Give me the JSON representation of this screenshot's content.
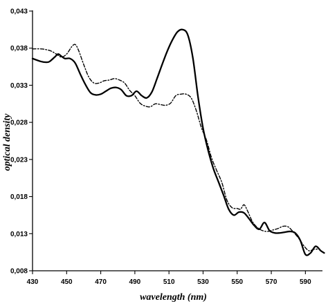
{
  "chart_data": {
    "type": "line",
    "title": "",
    "xlabel": "wavelength (nm)",
    "ylabel": "optical density",
    "xlim": [
      430,
      600
    ],
    "ylim": [
      0.008,
      0.043
    ],
    "x_ticks": [
      430,
      450,
      470,
      490,
      510,
      530,
      550,
      570,
      590
    ],
    "x_tick_labels": [
      "430",
      "450",
      "470",
      "490",
      "510",
      "530",
      "550",
      "570",
      "590"
    ],
    "y_ticks": [
      0.008,
      0.013,
      0.018,
      0.023,
      0.028,
      0.033,
      0.038,
      0.043
    ],
    "y_tick_labels": [
      "0,008",
      "0,013",
      "0,018",
      "0,023",
      "0,028",
      "0,033",
      "0,038",
      "0,043"
    ],
    "grid": false,
    "legend": "none",
    "series": [
      {
        "style": "solid",
        "color": "#000000",
        "points": [
          [
            430,
            0.0366
          ],
          [
            435,
            0.0362
          ],
          [
            438,
            0.0361
          ],
          [
            440,
            0.0362
          ],
          [
            443,
            0.0368
          ],
          [
            445,
            0.0372
          ],
          [
            447,
            0.0369
          ],
          [
            449,
            0.0366
          ],
          [
            452,
            0.0366
          ],
          [
            455,
            0.036
          ],
          [
            458,
            0.0345
          ],
          [
            461,
            0.0331
          ],
          [
            464,
            0.032
          ],
          [
            467,
            0.0317
          ],
          [
            470,
            0.0318
          ],
          [
            473,
            0.0322
          ],
          [
            476,
            0.0326
          ],
          [
            479,
            0.0327
          ],
          [
            482,
            0.0324
          ],
          [
            485,
            0.0316
          ],
          [
            488,
            0.0316
          ],
          [
            491,
            0.0322
          ],
          [
            494,
            0.0316
          ],
          [
            497,
            0.0313
          ],
          [
            500,
            0.0321
          ],
          [
            503,
            0.0339
          ],
          [
            506,
            0.0358
          ],
          [
            509,
            0.0376
          ],
          [
            512,
            0.0391
          ],
          [
            515,
            0.0402
          ],
          [
            518,
            0.0405
          ],
          [
            521,
            0.0398
          ],
          [
            524,
            0.0367
          ],
          [
            527,
            0.0315
          ],
          [
            530,
            0.0272
          ],
          [
            533,
            0.0242
          ],
          [
            536,
            0.0218
          ],
          [
            539,
            0.02
          ],
          [
            542,
            0.0182
          ],
          [
            545,
            0.0163
          ],
          [
            548,
            0.0155
          ],
          [
            551,
            0.0159
          ],
          [
            554,
            0.0158
          ],
          [
            557,
            0.015
          ],
          [
            560,
            0.0141
          ],
          [
            563,
            0.0136
          ],
          [
            566,
            0.0145
          ],
          [
            569,
            0.0134
          ],
          [
            572,
            0.0131
          ],
          [
            575,
            0.0131
          ],
          [
            578,
            0.0132
          ],
          [
            581,
            0.0133
          ],
          [
            584,
            0.0131
          ],
          [
            587,
            0.0121
          ],
          [
            590,
            0.0102
          ],
          [
            593,
            0.0104
          ],
          [
            596,
            0.0113
          ],
          [
            599,
            0.0107
          ],
          [
            601,
            0.0104
          ]
        ]
      },
      {
        "style": "dash-dot",
        "color": "#000000",
        "points": [
          [
            430,
            0.0379
          ],
          [
            435,
            0.0379
          ],
          [
            438,
            0.0378
          ],
          [
            441,
            0.0376
          ],
          [
            444,
            0.0372
          ],
          [
            447,
            0.0368
          ],
          [
            450,
            0.0372
          ],
          [
            453,
            0.0382
          ],
          [
            455,
            0.0385
          ],
          [
            457,
            0.0377
          ],
          [
            460,
            0.0358
          ],
          [
            463,
            0.0341
          ],
          [
            466,
            0.0333
          ],
          [
            469,
            0.0333
          ],
          [
            472,
            0.0336
          ],
          [
            475,
            0.0337
          ],
          [
            478,
            0.0339
          ],
          [
            481,
            0.0337
          ],
          [
            484,
            0.0333
          ],
          [
            487,
            0.0323
          ],
          [
            490,
            0.0316
          ],
          [
            493,
            0.0306
          ],
          [
            496,
            0.0302
          ],
          [
            499,
            0.0301
          ],
          [
            502,
            0.0305
          ],
          [
            505,
            0.0304
          ],
          [
            508,
            0.0303
          ],
          [
            511,
            0.0306
          ],
          [
            514,
            0.0316
          ],
          [
            517,
            0.0318
          ],
          [
            520,
            0.0318
          ],
          [
            523,
            0.0313
          ],
          [
            526,
            0.0296
          ],
          [
            529,
            0.0273
          ],
          [
            532,
            0.0256
          ],
          [
            535,
            0.0232
          ],
          [
            538,
            0.0215
          ],
          [
            541,
            0.0199
          ],
          [
            544,
            0.0175
          ],
          [
            547,
            0.0165
          ],
          [
            550,
            0.0164
          ],
          [
            552,
            0.0163
          ],
          [
            554,
            0.0169
          ],
          [
            556,
            0.0161
          ],
          [
            559,
            0.0146
          ],
          [
            562,
            0.0138
          ],
          [
            565,
            0.0134
          ],
          [
            568,
            0.0133
          ],
          [
            571,
            0.0135
          ],
          [
            574,
            0.0137
          ],
          [
            577,
            0.014
          ],
          [
            580,
            0.0139
          ],
          [
            583,
            0.0132
          ],
          [
            586,
            0.0124
          ],
          [
            589,
            0.0114
          ],
          [
            592,
            0.0107
          ],
          [
            595,
            0.0109
          ],
          [
            598,
            0.0109
          ]
        ]
      }
    ]
  }
}
